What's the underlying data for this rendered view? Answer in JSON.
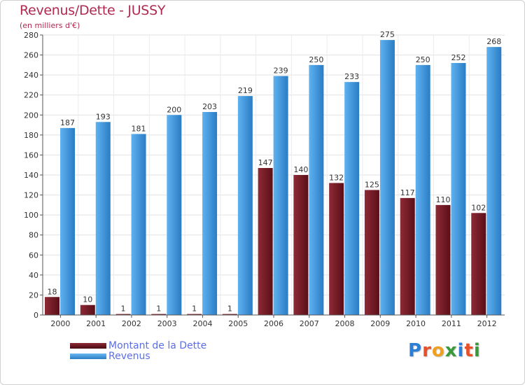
{
  "chart_data": {
    "type": "bar",
    "title": "Revenus/Dette - JUSSY",
    "subtitle": "(en milliers d'€)",
    "xlabel": "",
    "ylabel": "",
    "ylim": [
      0,
      280
    ],
    "yticks": [
      0,
      20,
      40,
      60,
      80,
      100,
      120,
      140,
      160,
      180,
      200,
      220,
      240,
      260,
      280
    ],
    "grid": true,
    "legend_position": "bottom-left",
    "categories": [
      "2000",
      "2001",
      "2002",
      "2003",
      "2004",
      "2005",
      "2006",
      "2007",
      "2008",
      "2009",
      "2010",
      "2011",
      "2012"
    ],
    "series": [
      {
        "name": "Montant de la Dette",
        "color": "#7a1e28",
        "values": [
          18,
          10,
          1,
          1,
          1,
          1,
          147,
          140,
          132,
          125,
          117,
          110,
          102
        ]
      },
      {
        "name": "Revenus",
        "color": "#4fa3e6",
        "values": [
          187,
          193,
          181,
          200,
          203,
          219,
          239,
          250,
          233,
          275,
          250,
          252,
          268
        ]
      }
    ]
  },
  "logo": {
    "letters": [
      {
        "ch": "P",
        "color": "#2c7fd6"
      },
      {
        "ch": "r",
        "color": "#e8502a"
      },
      {
        "ch": "o",
        "color": "#f0a020"
      },
      {
        "ch": "x",
        "color": "#3a9a3a"
      },
      {
        "ch": "i",
        "color": "#2c7fd6"
      },
      {
        "ch": "t",
        "color": "#e8502a"
      },
      {
        "ch": "i",
        "color": "#3a9a3a"
      }
    ]
  }
}
